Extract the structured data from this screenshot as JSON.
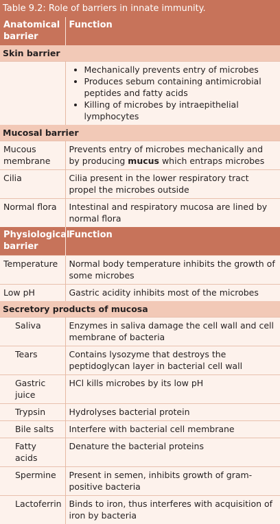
{
  "title": "Table 9.2: Role of barriers in innate immunity.",
  "header1": {
    "col1": "Anatomical barrier",
    "col2": "Function"
  },
  "skin": {
    "label": "Skin barrier",
    "bullets": [
      "Mechanically prevents entry of microbes",
      "Produces sebum containing antimicrobial peptides and fatty acids",
      "Killing of microbes by intraepithelial lymphocytes"
    ]
  },
  "mucosal": {
    "label": "Mucosal barrier",
    "rows": [
      {
        "name": "Mucous membrane",
        "pre": "Prevents entry of microbes mechanically and by producing ",
        "bold": "mucus",
        "post": " which entraps microbes"
      },
      {
        "name": "Cilia",
        "pre": "Cilia present in the lower respiratory tract propel the microbes outside",
        "bold": "",
        "post": ""
      },
      {
        "name": "Normal flora",
        "pre": "Intestinal and respiratory mucosa are lined by normal flora",
        "bold": "",
        "post": ""
      }
    ]
  },
  "header2": {
    "col1": "Physiological barrier",
    "col2": "Function"
  },
  "physio": {
    "rows": [
      {
        "name": "Temperature",
        "func": "Normal body temperature inhibits the growth of some microbes"
      },
      {
        "name": "Low pH",
        "func": "Gastric acidity inhibits most of the microbes"
      }
    ]
  },
  "secretory": {
    "label": "Secretory products of mucosa",
    "rows": [
      {
        "name": "Saliva",
        "func": "Enzymes in saliva damage the cell wall and cell membrane of bacteria"
      },
      {
        "name": "Tears",
        "func": "Contains lysozyme that destroys the peptidoglycan layer in bacterial cell wall"
      },
      {
        "name": "Gastric juice",
        "func": "HCl kills microbes by its low pH"
      },
      {
        "name": "Trypsin",
        "func": "Hydrolyses bacterial protein"
      },
      {
        "name": "Bile salts",
        "func": "Interfere with bacterial cell membrane"
      },
      {
        "name": "Fatty acids",
        "func": "Denature the bacterial proteins"
      },
      {
        "name": "Spermine",
        "func": "Present in semen, inhibits growth of gram-positive bacteria"
      },
      {
        "name": "Lactoferrin",
        "func": "Binds to iron, thus interferes with acquisition of iron by bacteria"
      }
    ]
  }
}
